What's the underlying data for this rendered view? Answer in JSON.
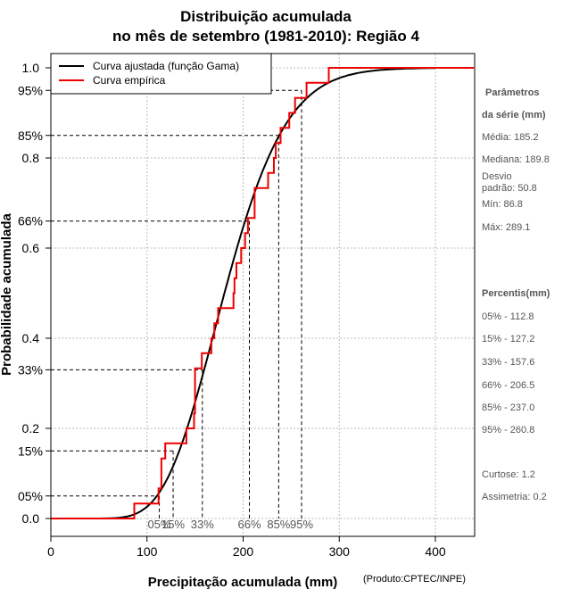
{
  "chart_data": {
    "type": "line",
    "title_line1": "Distribuição acumulada",
    "title_line2": "no mês de setembro (1981-2010): Região 4",
    "xlabel": "Precipitação acumulada (mm)",
    "ylabel": "Probabilidade acumulada",
    "credit": "(Produto:CPTEC/INPE)",
    "xlim": [
      0,
      440
    ],
    "ylim": [
      0,
      1
    ],
    "x_ticks": [
      0,
      100,
      200,
      300,
      400
    ],
    "y_ticks": [
      0.0,
      0.2,
      0.4,
      0.6,
      0.8,
      1.0
    ],
    "y_tick_labels": [
      "0.0",
      "0.2",
      "0.4",
      "0.6",
      "0.8",
      "1.0"
    ],
    "legend": {
      "position": "top-left",
      "entries": [
        {
          "label": "Curva ajustada (função Gama)",
          "color": "#000000"
        },
        {
          "label": "Curva empírica",
          "color": "#ee0000"
        }
      ]
    },
    "gamma_fit": {
      "mean": 185.2,
      "sd": 50.8,
      "color": "#000000"
    },
    "empirical_steps": [
      {
        "x": 86.8,
        "y": 0.033
      },
      {
        "x": 112,
        "y": 0.067
      },
      {
        "x": 115,
        "y": 0.133
      },
      {
        "x": 119,
        "y": 0.167
      },
      {
        "x": 141,
        "y": 0.2
      },
      {
        "x": 149,
        "y": 0.233
      },
      {
        "x": 150,
        "y": 0.333
      },
      {
        "x": 157,
        "y": 0.367
      },
      {
        "x": 167,
        "y": 0.4
      },
      {
        "x": 170,
        "y": 0.433
      },
      {
        "x": 174,
        "y": 0.467
      },
      {
        "x": 190,
        "y": 0.5
      },
      {
        "x": 191,
        "y": 0.533
      },
      {
        "x": 193,
        "y": 0.567
      },
      {
        "x": 198,
        "y": 0.6
      },
      {
        "x": 202,
        "y": 0.633
      },
      {
        "x": 205,
        "y": 0.667
      },
      {
        "x": 212,
        "y": 0.733
      },
      {
        "x": 226,
        "y": 0.767
      },
      {
        "x": 232,
        "y": 0.8
      },
      {
        "x": 234,
        "y": 0.833
      },
      {
        "x": 239,
        "y": 0.867
      },
      {
        "x": 248,
        "y": 0.9
      },
      {
        "x": 254,
        "y": 0.933
      },
      {
        "x": 266,
        "y": 0.967
      },
      {
        "x": 289.1,
        "y": 1.0
      }
    ],
    "empirical_color": "#ee0000",
    "percentile_guides": [
      {
        "label": "05%",
        "prob": 0.05,
        "value": 112.8
      },
      {
        "label": "15%",
        "prob": 0.15,
        "value": 127.2
      },
      {
        "label": "33%",
        "prob": 0.33,
        "value": 157.6
      },
      {
        "label": "66%",
        "prob": 0.66,
        "value": 206.5
      },
      {
        "label": "85%",
        "prob": 0.85,
        "value": 237.0
      },
      {
        "label": "95%",
        "prob": 0.95,
        "value": 260.8
      }
    ]
  },
  "side_panel": {
    "params_heading_1": "Parâmetros",
    "params_heading_2": "da série (mm)",
    "media": "Média: 185.2",
    "mediana": "Mediana: 189.8",
    "desvio_1": "Desvio",
    "desvio_2": "padrão: 50.8",
    "min": "Mín: 86.8",
    "max": "Máx: 289.1",
    "percentis_heading": "Percentis(mm)",
    "p05": "05% - 112.8",
    "p15": "15% - 127.2",
    "p33": "33% - 157.6",
    "p66": "66% - 206.5",
    "p85": "85% - 237.0",
    "p95": "95% - 260.8",
    "curtose": "Curtose: 1.2",
    "assimetria": "Assimetria: 0.2"
  }
}
